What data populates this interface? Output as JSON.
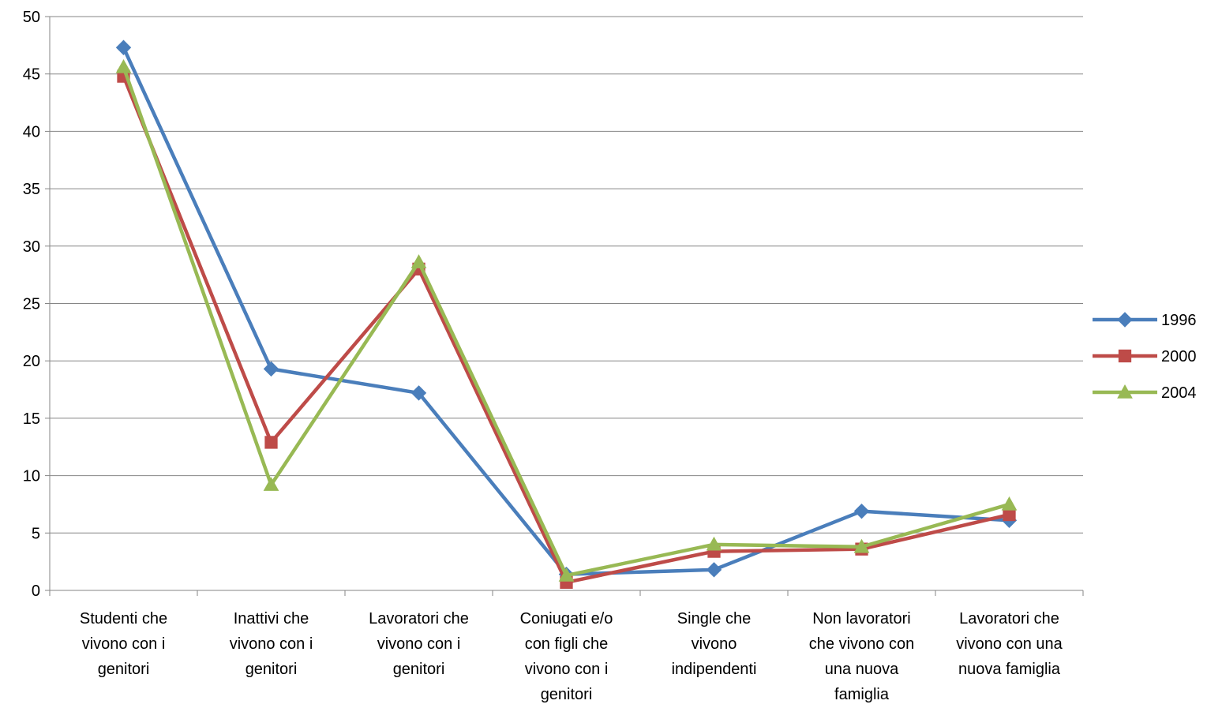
{
  "chart_data": {
    "type": "line",
    "categories": [
      [
        "Studenti che",
        "vivono con i",
        "genitori"
      ],
      [
        "Inattivi che",
        "vivono con i",
        "genitori"
      ],
      [
        "Lavoratori che",
        "vivono con i",
        "genitori"
      ],
      [
        "Coniugati e/o",
        "con figli che",
        "vivono con i",
        "genitori"
      ],
      [
        "Single che",
        "vivono",
        "indipendenti"
      ],
      [
        "Non lavoratori",
        "che vivono con",
        "una nuova",
        "famiglia"
      ],
      [
        "Lavoratori che",
        "vivono con una",
        "nuova famiglia"
      ]
    ],
    "series": [
      {
        "name": "1996",
        "color": "#4a7ebb",
        "marker": "diamond",
        "values": [
          47.3,
          19.3,
          17.2,
          1.4,
          1.8,
          6.9,
          6.1
        ]
      },
      {
        "name": "2000",
        "color": "#be4b48",
        "marker": "square",
        "values": [
          44.8,
          12.9,
          28.0,
          0.7,
          3.4,
          3.6,
          6.6
        ]
      },
      {
        "name": "2004",
        "color": "#98b954",
        "marker": "triangle",
        "values": [
          45.6,
          9.2,
          28.6,
          1.3,
          4.0,
          3.8,
          7.5
        ]
      }
    ],
    "yticks": [
      "0",
      "5",
      "10",
      "15",
      "20",
      "25",
      "30",
      "35",
      "40",
      "45",
      "50"
    ],
    "ylim": [
      0,
      50
    ],
    "grid": true,
    "legend": "right",
    "title": "",
    "xlabel": "",
    "ylabel": ""
  }
}
